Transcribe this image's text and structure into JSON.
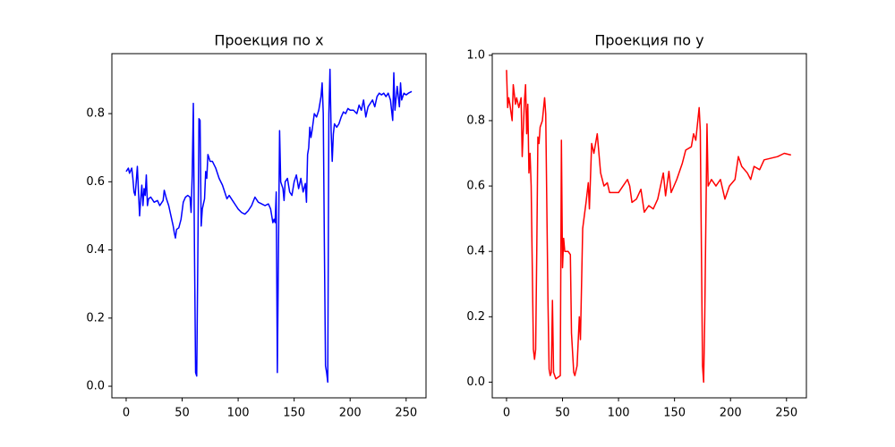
{
  "chart_data": [
    {
      "type": "line",
      "title": "Проекция по x",
      "color": "#0000ff",
      "x": [
        0,
        2,
        3,
        5,
        6,
        7,
        8,
        9,
        10,
        11,
        12,
        13,
        14,
        15,
        16,
        17,
        18,
        19,
        20,
        22,
        25,
        28,
        30,
        33,
        34,
        36,
        38,
        40,
        42,
        43,
        44,
        45,
        47,
        49,
        51,
        53,
        55,
        57,
        58,
        59,
        60,
        61,
        62,
        63,
        64,
        65,
        66,
        67,
        68,
        70,
        71,
        72,
        73,
        75,
        77,
        80,
        83,
        86,
        88,
        90,
        92,
        95,
        98,
        100,
        103,
        106,
        109,
        112,
        115,
        118,
        121,
        124,
        127,
        129,
        130,
        131,
        132,
        133,
        134,
        135,
        136,
        137,
        138,
        140,
        141,
        142,
        144,
        146,
        148,
        150,
        152,
        154,
        156,
        158,
        160,
        161,
        162,
        163,
        164,
        165,
        166,
        168,
        170,
        172,
        174,
        175,
        176,
        177,
        178,
        179,
        180,
        181,
        182,
        183,
        184,
        185,
        186,
        188,
        190,
        192,
        194,
        196,
        198,
        200,
        203,
        206,
        208,
        210,
        212,
        214,
        216,
        218,
        220,
        222,
        224,
        226,
        228,
        230,
        232,
        234,
        236,
        238,
        239,
        240,
        242,
        244,
        245,
        246,
        248,
        250,
        252,
        255
      ],
      "values": [
        0.63,
        0.64,
        0.625,
        0.64,
        0.61,
        0.57,
        0.56,
        0.6,
        0.645,
        0.57,
        0.5,
        0.55,
        0.59,
        0.53,
        0.58,
        0.56,
        0.62,
        0.53,
        0.55,
        0.555,
        0.54,
        0.545,
        0.53,
        0.545,
        0.575,
        0.55,
        0.53,
        0.5,
        0.47,
        0.45,
        0.435,
        0.46,
        0.465,
        0.49,
        0.54,
        0.555,
        0.56,
        0.555,
        0.51,
        0.62,
        0.83,
        0.4,
        0.04,
        0.03,
        0.38,
        0.785,
        0.78,
        0.47,
        0.52,
        0.55,
        0.63,
        0.61,
        0.68,
        0.66,
        0.66,
        0.64,
        0.61,
        0.59,
        0.57,
        0.55,
        0.56,
        0.545,
        0.53,
        0.52,
        0.51,
        0.505,
        0.515,
        0.53,
        0.555,
        0.54,
        0.535,
        0.53,
        0.535,
        0.52,
        0.5,
        0.48,
        0.49,
        0.48,
        0.57,
        0.04,
        0.4,
        0.75,
        0.6,
        0.58,
        0.545,
        0.6,
        0.61,
        0.57,
        0.56,
        0.6,
        0.62,
        0.58,
        0.61,
        0.57,
        0.595,
        0.54,
        0.68,
        0.7,
        0.76,
        0.73,
        0.75,
        0.8,
        0.79,
        0.81,
        0.85,
        0.89,
        0.8,
        0.41,
        0.06,
        0.04,
        0.012,
        0.8,
        0.93,
        0.75,
        0.66,
        0.74,
        0.77,
        0.76,
        0.77,
        0.79,
        0.805,
        0.8,
        0.815,
        0.81,
        0.81,
        0.8,
        0.825,
        0.81,
        0.84,
        0.79,
        0.82,
        0.83,
        0.84,
        0.82,
        0.85,
        0.86,
        0.855,
        0.86,
        0.85,
        0.86,
        0.84,
        0.78,
        0.92,
        0.81,
        0.88,
        0.82,
        0.89,
        0.84,
        0.86,
        0.855,
        0.86,
        0.865
      ],
      "xlim": [
        -12.75,
        267.75
      ],
      "ylim": [
        -0.034,
        0.976
      ],
      "xticks": [
        0,
        50,
        100,
        150,
        200,
        250
      ],
      "yticks": [
        {
          "value": 0,
          "label": "0.0"
        },
        0.2,
        0.4,
        0.6,
        0.8
      ]
    },
    {
      "type": "line",
      "title": "Проекция по y",
      "color": "#ff0000",
      "x": [
        0,
        1,
        2,
        3,
        5,
        6,
        8,
        9,
        11,
        13,
        14,
        16,
        17,
        18,
        19,
        20,
        21,
        22,
        24,
        25,
        26,
        27,
        28,
        29,
        30,
        32,
        34,
        35,
        37,
        38,
        39,
        40,
        41,
        42,
        44,
        46,
        48,
        49,
        50,
        51,
        52,
        55,
        57,
        58,
        60,
        61,
        63,
        65,
        66,
        68,
        71,
        73,
        74,
        76,
        78,
        79,
        81,
        84,
        87,
        90,
        92,
        96,
        100,
        104,
        108,
        110,
        112,
        116,
        120,
        123,
        127,
        131,
        135,
        140,
        142,
        145,
        147,
        152,
        157,
        160,
        165,
        167,
        169,
        172,
        173,
        175,
        176,
        177,
        179,
        180,
        183,
        187,
        191,
        195,
        199,
        204,
        207,
        210,
        215,
        218,
        221,
        226,
        230,
        242,
        248,
        254
      ],
      "values": [
        0.955,
        0.84,
        0.87,
        0.85,
        0.8,
        0.91,
        0.85,
        0.87,
        0.84,
        0.87,
        0.69,
        0.86,
        0.91,
        0.76,
        0.85,
        0.64,
        0.7,
        0.6,
        0.1,
        0.07,
        0.1,
        0.4,
        0.75,
        0.73,
        0.78,
        0.8,
        0.87,
        0.82,
        0.25,
        0.04,
        0.02,
        0.03,
        0.25,
        0.03,
        0.01,
        0.015,
        0.02,
        0.74,
        0.35,
        0.44,
        0.4,
        0.4,
        0.39,
        0.15,
        0.03,
        0.02,
        0.05,
        0.2,
        0.13,
        0.47,
        0.55,
        0.61,
        0.53,
        0.73,
        0.7,
        0.72,
        0.76,
        0.64,
        0.6,
        0.61,
        0.58,
        0.58,
        0.58,
        0.6,
        0.62,
        0.6,
        0.55,
        0.56,
        0.59,
        0.52,
        0.54,
        0.53,
        0.56,
        0.64,
        0.57,
        0.645,
        0.58,
        0.62,
        0.67,
        0.71,
        0.72,
        0.76,
        0.74,
        0.84,
        0.77,
        0.05,
        0,
        0.2,
        0.79,
        0.6,
        0.62,
        0.6,
        0.62,
        0.56,
        0.6,
        0.62,
        0.69,
        0.66,
        0.64,
        0.62,
        0.66,
        0.65,
        0.68,
        0.69,
        0.7,
        0.695
      ],
      "xlim": [
        -12.75,
        267.75
      ],
      "ylim": [
        -0.048,
        1.005
      ],
      "xticks": [
        0,
        50,
        100,
        150,
        200,
        250
      ],
      "yticks": [
        {
          "value": 0,
          "label": "0.0"
        },
        0.2,
        0.4,
        0.6,
        0.8,
        {
          "value": 1,
          "label": "1.0"
        }
      ]
    }
  ]
}
